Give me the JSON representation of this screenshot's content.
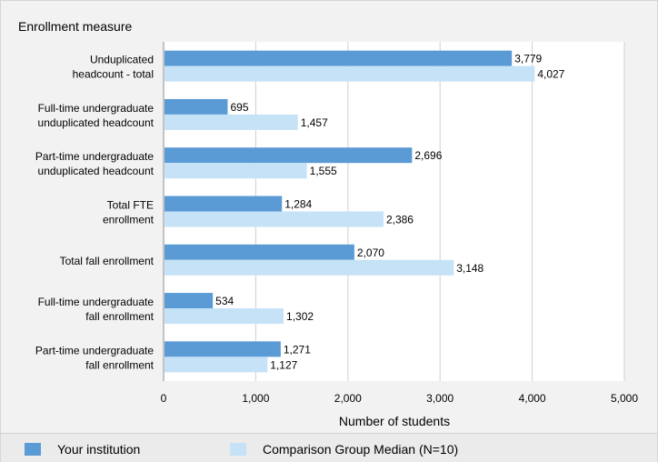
{
  "chart_data": {
    "type": "bar",
    "orientation": "horizontal",
    "title": "Enrollment measure",
    "xlabel": "Number of students",
    "xlim": [
      0,
      5000
    ],
    "x_ticks": [
      "0",
      "1,000",
      "2,000",
      "3,000",
      "4,000",
      "5,000"
    ],
    "x_tick_values": [
      0,
      1000,
      2000,
      3000,
      4000,
      5000
    ],
    "grid": true,
    "legend_position": "bottom",
    "categories": [
      [
        "Unduplicated",
        "headcount - total"
      ],
      [
        "Full-time undergraduate",
        "unduplicated headcount"
      ],
      [
        "Part-time undergraduate",
        "unduplicated headcount"
      ],
      [
        "Total FTE",
        "enrollment"
      ],
      [
        "Total fall enrollment"
      ],
      [
        "Full-time undergraduate",
        "fall enrollment"
      ],
      [
        "Part-time undergraduate",
        "fall enrollment"
      ]
    ],
    "series": [
      {
        "name": "Your institution",
        "color": "#5b9bd5",
        "values": [
          3779,
          695,
          2696,
          1284,
          2070,
          534,
          1271
        ],
        "labels": [
          "3,779",
          "695",
          "2,696",
          "1,284",
          "2,070",
          "534",
          "1,271"
        ]
      },
      {
        "name": "Comparison Group Median (N=10)",
        "color": "#c6e2f7",
        "values": [
          4027,
          1457,
          1555,
          2386,
          3148,
          1302,
          1127
        ],
        "labels": [
          "4,027",
          "1,457",
          "1,555",
          "2,386",
          "3,148",
          "1,302",
          "1,127"
        ]
      }
    ]
  }
}
